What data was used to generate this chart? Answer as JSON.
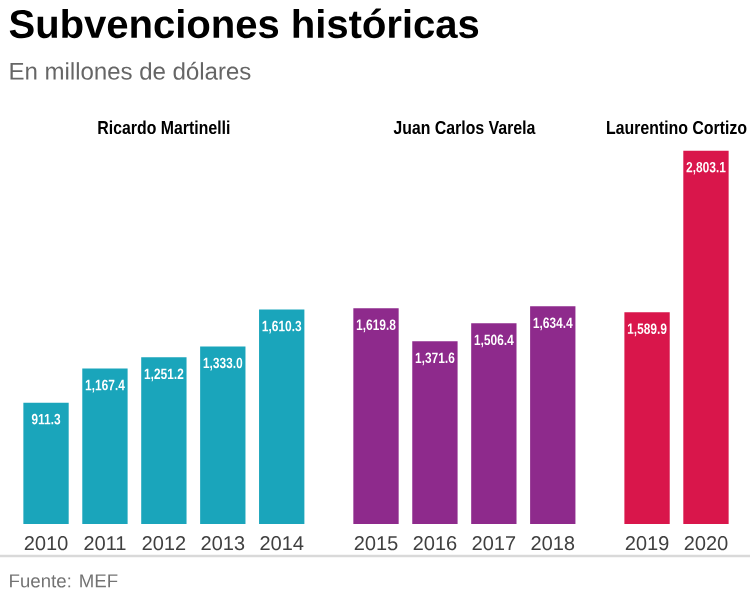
{
  "chart_data": {
    "type": "bar",
    "title": "Subvenciones históricas",
    "subtitle": "En millones de dólares",
    "categories": [
      "2010",
      "2011",
      "2012",
      "2013",
      "2014",
      "2015",
      "2016",
      "2017",
      "2018",
      "2019",
      "2020"
    ],
    "values": [
      911.3,
      1167.4,
      1251.2,
      1333.0,
      1610.3,
      1619.8,
      1371.6,
      1506.4,
      1634.4,
      1589.9,
      2803.1
    ],
    "value_labels": [
      "911.3",
      "1,167.4",
      "1,251.2",
      "1,333.0",
      "1,610.3",
      "1,619.8",
      "1,371.6",
      "1,506.4",
      "1,634.4",
      "1,589.9",
      "2,803.1"
    ],
    "colors": [
      "#1aa5bb",
      "#1aa5bb",
      "#1aa5bb",
      "#1aa5bb",
      "#1aa5bb",
      "#8e2a8c",
      "#8e2a8c",
      "#8e2a8c",
      "#8e2a8c",
      "#d9164b",
      "#d9164b"
    ],
    "annotations": [
      "Ricardo Martinelli",
      "Juan Carlos Varela",
      "Laurentino Cortizo",
      "Fuente: MEF"
    ]
  }
}
